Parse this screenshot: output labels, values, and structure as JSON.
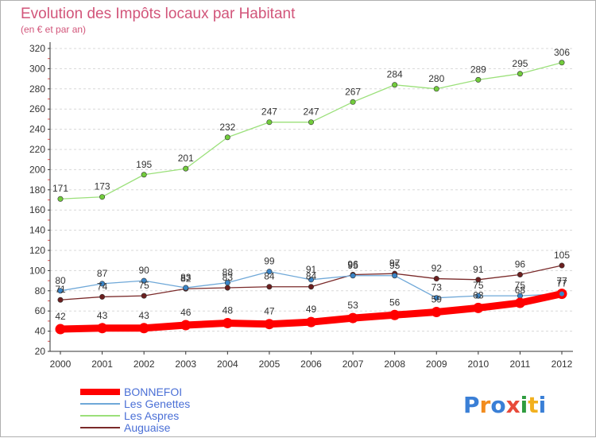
{
  "chart_data": {
    "type": "line",
    "title": "Evolution des Impôts locaux par Habitant",
    "subtitle": "(en € et par an)",
    "categories": [
      "2000",
      "2001",
      "2002",
      "2003",
      "2004",
      "2005",
      "2006",
      "2007",
      "2008",
      "2009",
      "2010",
      "2011",
      "2012"
    ],
    "ylim": [
      20,
      320
    ],
    "yticks": [
      20,
      40,
      60,
      80,
      100,
      120,
      140,
      160,
      180,
      200,
      220,
      240,
      260,
      280,
      300,
      320
    ],
    "grid": "horizontal-dashed",
    "legend_position": "bottom-left",
    "series": [
      {
        "name": "BONNEFOI",
        "color": "#ff0000",
        "point_color": "#ff0000",
        "values": [
          42,
          43,
          43,
          46,
          48,
          47,
          49,
          53,
          56,
          59,
          63,
          68,
          77
        ]
      },
      {
        "name": "Les Genettes",
        "color": "#6fa8d8",
        "point_color": "#3a85c8",
        "values": [
          80,
          87,
          90,
          83,
          88,
          99,
          91,
          95,
          95,
          73,
          75,
          75,
          77
        ]
      },
      {
        "name": "Les Aspres",
        "color": "#9be07a",
        "point_color": "#72cc3c",
        "values": [
          171,
          173,
          195,
          201,
          232,
          247,
          247,
          267,
          284,
          280,
          289,
          295,
          306
        ]
      },
      {
        "name": "Auguaise",
        "color": "#7a2a2a",
        "point_color": "#6b1f1f",
        "values": [
          71,
          74,
          75,
          82,
          83,
          84,
          84,
          96,
          97,
          92,
          91,
          96,
          105
        ]
      }
    ]
  },
  "logo": {
    "text": "Proxiti"
  }
}
